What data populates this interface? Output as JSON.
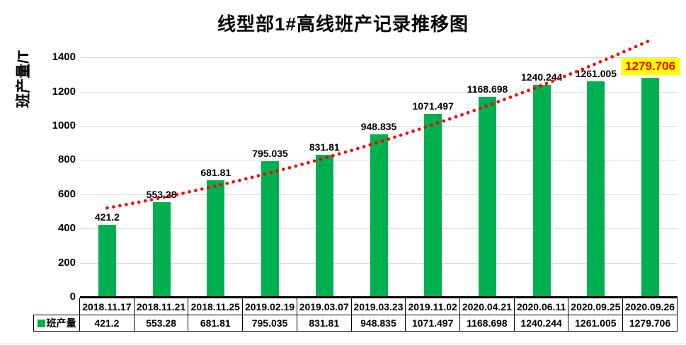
{
  "title": "线型部1#高线班产记录推移图",
  "y_axis": {
    "label": "班产量/T",
    "tick_labels": [
      "0",
      "200",
      "400",
      "600",
      "800",
      "1000",
      "1200",
      "1400"
    ]
  },
  "legend": {
    "series_label": "班产量",
    "swatch_color": "#00b050"
  },
  "chart_data": {
    "type": "bar",
    "title": "线型部1#高线班产记录推移图",
    "xlabel": "",
    "ylabel": "班产量/T",
    "categories": [
      "2018.11.17",
      "2018.11.21",
      "2018.11.25",
      "2019.02.19",
      "2019.03.07",
      "2019.03.23",
      "2019.11.02",
      "2020.04.21",
      "2020.06.11",
      "2020.09.25",
      "2020.09.26"
    ],
    "series": [
      {
        "name": "班产量",
        "values": [
          421.2,
          553.28,
          681.81,
          795.035,
          831.81,
          948.835,
          1071.497,
          1168.698,
          1240.244,
          1261.005,
          1279.706
        ]
      }
    ],
    "data_labels": [
      "421.2",
      "553.28",
      "681.81",
      "795.035",
      "831.81",
      "948.835",
      "1071.497",
      "1168.698",
      "1240.244",
      "1261.005",
      "1279.706"
    ],
    "ylim": [
      0,
      1500
    ],
    "ytick_step": 200,
    "ytick_max_labeled": 1400,
    "grid": true,
    "legend_position": "bottom-table-left",
    "bar_color": "#00b050",
    "gridline_color": "#d9d9d9",
    "trendline": {
      "type": "curved-fit",
      "style": "round-dot",
      "color": "#ff0000",
      "values_estimate": {
        "start": 520,
        "mid": 905,
        "end": 1500
      }
    },
    "highlight": {
      "index": 10,
      "text_color": "#ff0000",
      "background": "#ffff00"
    }
  },
  "table": {
    "legend_label": "班产量",
    "date_row": [
      "2018.11.17",
      "2018.11.21",
      "2018.11.25",
      "2019.02.19",
      "2019.03.07",
      "2019.03.23",
      "2019.11.02",
      "2020.04.21",
      "2020.06.11",
      "2020.09.25",
      "2020.09.26"
    ],
    "value_row": [
      "421.2",
      "553.28",
      "681.81",
      "795.035",
      "831.81",
      "948.835",
      "1071.497",
      "1168.698",
      "1240.244",
      "1261.005",
      "1279.706"
    ]
  }
}
